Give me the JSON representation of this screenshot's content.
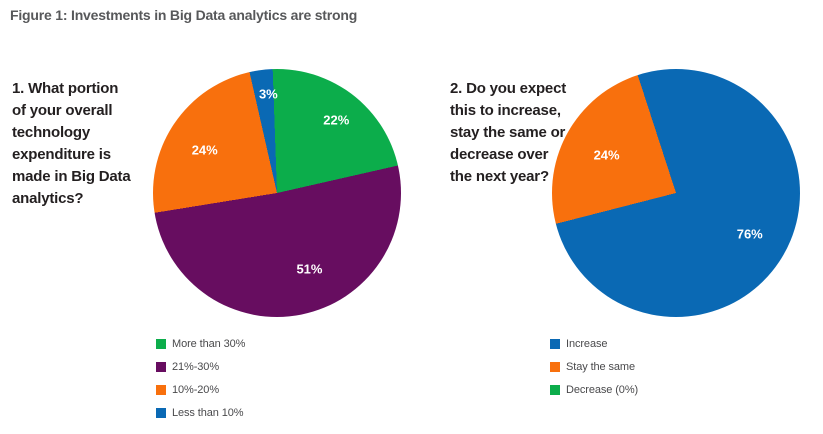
{
  "figure": {
    "title": "Figure 1: Investments in Big Data analytics are strong",
    "background_color": "#ffffff",
    "title_color": "#57585A",
    "question_color": "#231F20",
    "legend_text_color": "#4A4A4C",
    "questions": {
      "q1": "1. What portion\nof your overall\ntechnology\nexpenditure is\nmade in Big Data\nanalytics?",
      "q2": "2. Do you expect\nthis to increase,\nstay the same or\ndecrease over\nthe next year?"
    }
  },
  "palette": {
    "green": "#0CAD4B",
    "purple": "#670D60",
    "orange": "#F8700D",
    "blue": "#0A69B4"
  },
  "chart_data": [
    {
      "type": "pie",
      "title": "1. What portion of your overall technology expenditure is made in Big Data analytics?",
      "legend_position": "bottom-left",
      "start_angle": -2,
      "slices": [
        {
          "label": "More than 30%",
          "value": 22,
          "display": "22%",
          "color": "#0CAD4B",
          "label_a": 39,
          "label_r": 0.76
        },
        {
          "label": "21%-30%",
          "value": 51,
          "display": "51%",
          "color": "#670D60",
          "label_a": 157,
          "label_r": 0.67
        },
        {
          "label": "10%-20%",
          "value": 24,
          "display": "24%",
          "color": "#F8700D",
          "label_a": 301,
          "label_r": 0.68
        },
        {
          "label": "Less than 10%",
          "value": 3,
          "display": "3%",
          "color": "#0A69B4",
          "label_a": 355,
          "label_r": 0.8
        }
      ]
    },
    {
      "type": "pie",
      "title": "2. Do you expect this to increase, stay the same or decrease over the next year?",
      "legend_position": "bottom-left",
      "start_angle": -18,
      "slices": [
        {
          "label": "Increase",
          "value": 76,
          "display": "76%",
          "color": "#0A69B4",
          "label_a": 119,
          "label_r": 0.68
        },
        {
          "label": "Stay the same",
          "value": 24,
          "display": "24%",
          "color": "#F8700D",
          "label_a": 299,
          "label_r": 0.64
        },
        {
          "label": "Decrease (0%)",
          "value": 0,
          "display": "0%",
          "color": "#0CAD4B",
          "label_a": 0,
          "label_r": 0
        }
      ]
    }
  ]
}
